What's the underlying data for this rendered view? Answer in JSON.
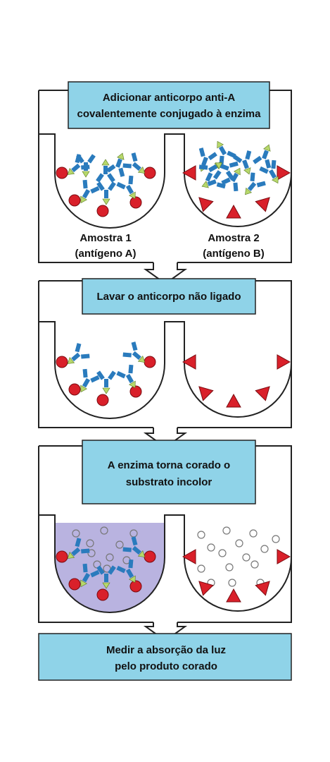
{
  "steps": [
    {
      "lines": [
        "Adicionar anticorpo anti-A",
        "covalentemente conjugado à enzima"
      ]
    },
    {
      "lines": [
        "Lavar o anticorpo não ligado"
      ]
    },
    {
      "lines": [
        "A enzima torna corado o",
        "substrato incolor"
      ]
    },
    {
      "lines": [
        "Medir a absorção da luz",
        "pelo produto corado"
      ]
    }
  ],
  "samples": [
    {
      "name": "Amostra 1",
      "antigen": "(antígeno A)"
    },
    {
      "name": "Amostra 2",
      "antigen": "(antígeno B)"
    }
  ],
  "colors": {
    "step_box": "#8fd3e8",
    "antigen_a": "#d9202a",
    "antigen_b": "#d9202a",
    "antibody": "#2a7bbd",
    "enzyme": "#b7d86b",
    "colored_product": "#b9b3e0",
    "substrate_circle": "#777777",
    "outline": "#222222"
  },
  "icons": [
    "antigen-a-circle",
    "antigen-b-triangle",
    "antibody-y",
    "enzyme-triangle",
    "substrate-circle"
  ]
}
